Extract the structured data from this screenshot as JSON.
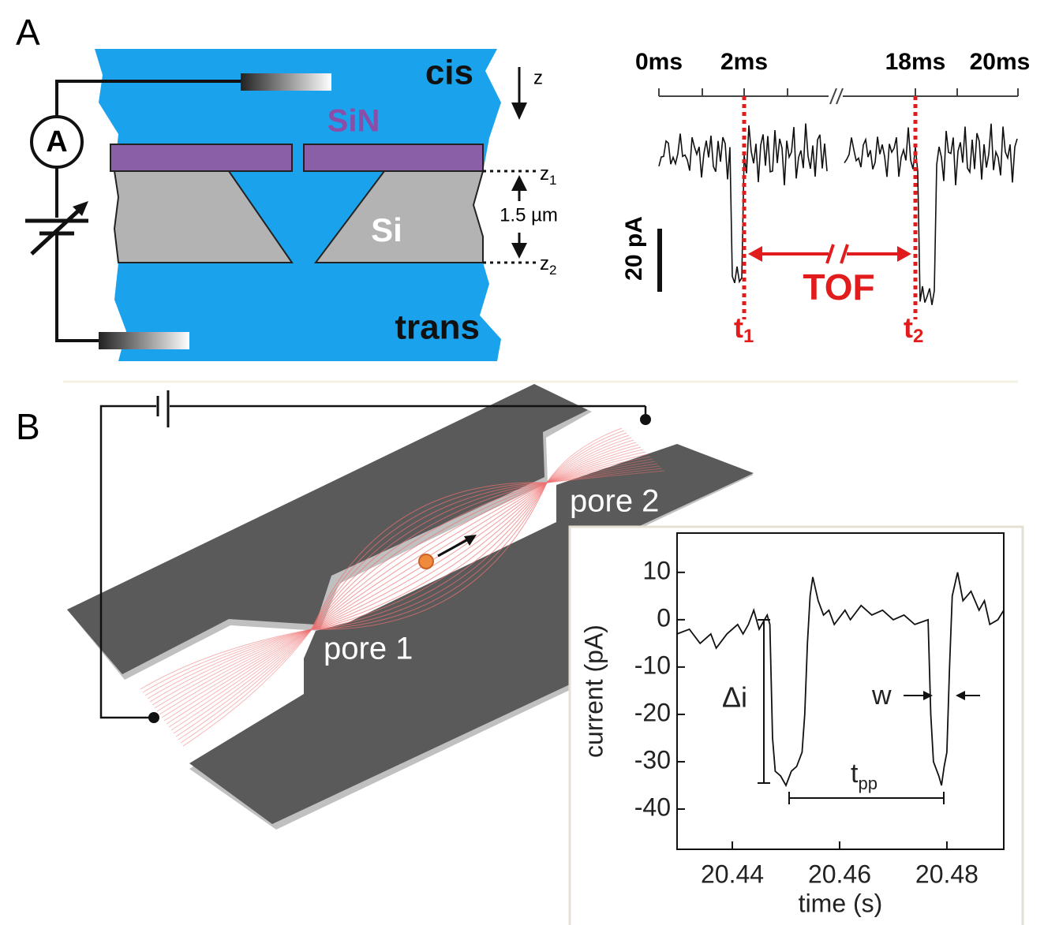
{
  "panel_a": {
    "label": "A",
    "cis": "cis",
    "trans": "trans",
    "sin": "SiN",
    "si": "Si",
    "ammeter": "A",
    "z": "z",
    "z1": {
      "text": "z",
      "sub": "1"
    },
    "z2": {
      "text": "z",
      "sub": "2"
    },
    "thickness": "1.5 µm",
    "time_labels": [
      "0ms",
      "2ms",
      "18ms",
      "20ms"
    ],
    "scale_bar": "20 pA",
    "tof": "TOF",
    "t1": {
      "text": "t",
      "sub": "1"
    },
    "t2": {
      "text": "t",
      "sub": "2"
    }
  },
  "panel_b": {
    "label": "B",
    "pore1": "pore 1",
    "pore2": "pore 2",
    "inset": {
      "xlabel": "time (s)",
      "ylabel": "current (pA)",
      "delta_i": "Δi",
      "w": "w",
      "tpp": {
        "text": "t",
        "sub": "pp"
      },
      "xlim": [
        20.4297,
        20.4906
      ],
      "ylim": [
        -48.5,
        18.3
      ],
      "xticks": [
        20.44,
        20.46,
        20.48
      ],
      "yticks": [
        10,
        0,
        -10,
        -20,
        -30,
        -40
      ],
      "x": [
        20.4297,
        20.432,
        20.434,
        20.436,
        20.437,
        20.439,
        20.441,
        20.442,
        20.443,
        20.444,
        20.445,
        20.446,
        20.4465,
        20.447,
        20.4475,
        20.448,
        20.449,
        20.45,
        20.451,
        20.452,
        20.453,
        20.4535,
        20.454,
        20.4545,
        20.455,
        20.456,
        20.457,
        20.458,
        20.459,
        20.461,
        20.462,
        20.464,
        20.466,
        20.468,
        20.47,
        20.472,
        20.474,
        20.4765,
        20.477,
        20.4775,
        20.4785,
        20.479,
        20.4795,
        20.48,
        20.4805,
        20.481,
        20.482,
        20.483,
        20.4845,
        20.486,
        20.487,
        20.488,
        20.4895,
        20.4906
      ],
      "y": [
        -3,
        -2,
        -5,
        -3,
        -6,
        -3,
        -1,
        -3,
        -1,
        2,
        -2,
        0,
        1,
        -1,
        -25,
        -32,
        -33,
        -35,
        -32,
        -31,
        -28,
        -20,
        -5,
        5,
        9,
        4,
        1,
        2,
        -1,
        2,
        0,
        3,
        1,
        2,
        0,
        1,
        -1,
        0,
        -20,
        -30,
        -33,
        -35,
        -31,
        -28,
        -10,
        5,
        10,
        4,
        6,
        2,
        4,
        -1,
        0,
        2
      ]
    }
  }
}
